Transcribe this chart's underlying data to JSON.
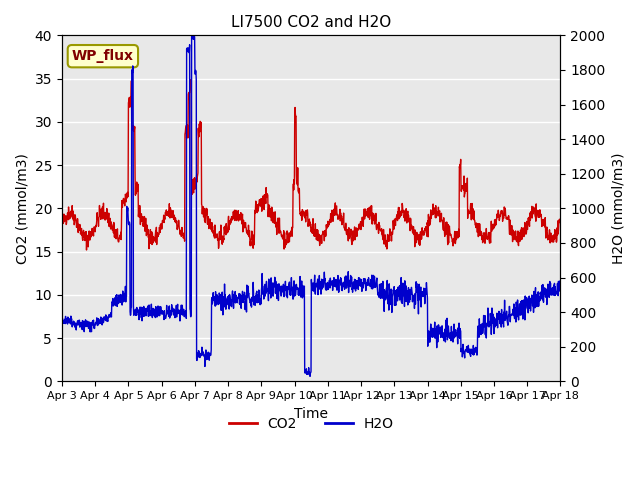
{
  "title": "LI7500 CO2 and H2O",
  "xlabel": "Time",
  "ylabel_left": "CO2 (mmol/m3)",
  "ylabel_right": "H2O (mmol/m3)",
  "ylim_left": [
    0,
    40
  ],
  "ylim_right": [
    0,
    2000
  ],
  "yticks_left": [
    0,
    5,
    10,
    15,
    20,
    25,
    30,
    35,
    40
  ],
  "yticks_right": [
    0,
    200,
    400,
    600,
    800,
    1000,
    1200,
    1400,
    1600,
    1800,
    2000
  ],
  "x_dates": [
    "Apr 3",
    "Apr 4",
    "Apr 5",
    "Apr 6",
    "Apr 7",
    "Apr 8",
    "Apr 9",
    "Apr 10",
    "Apr 11",
    "Apr 12",
    "Apr 13",
    "Apr 14",
    "Apr 15",
    "Apr 16",
    "Apr 17",
    "Apr 18"
  ],
  "co2_color": "#cc0000",
  "h2o_color": "#0000cc",
  "bg_color": "#e8e8e8",
  "legend_box_color": "#ffffcc",
  "legend_box_edge": "#999900",
  "annotation_text": "WP_flux",
  "annotation_color": "#800000",
  "grid_color": "#ffffff",
  "line_width": 1.0
}
